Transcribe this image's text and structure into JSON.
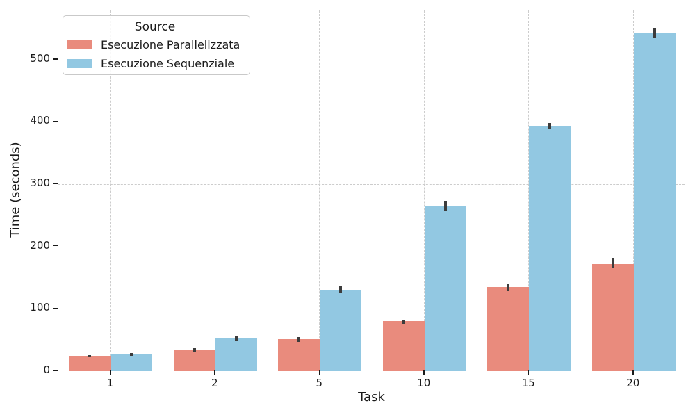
{
  "chart_data": {
    "type": "bar",
    "title": "",
    "xlabel": "Task",
    "ylabel": "Time (seconds)",
    "categories": [
      "1",
      "2",
      "5",
      "10",
      "15",
      "20"
    ],
    "series": [
      {
        "name": "Esecuzione Parallelizzata",
        "color": "#E98B7D",
        "values": [
          24,
          34,
          51,
          80,
          135,
          172
        ],
        "err_low": [
          22,
          31,
          47,
          76,
          128,
          165
        ],
        "err_high": [
          26,
          37,
          55,
          83,
          141,
          182
        ]
      },
      {
        "name": "Esecuzione Sequenziale",
        "color": "#92C8E2",
        "values": [
          27,
          52,
          130,
          265,
          394,
          543
        ],
        "err_low": [
          25,
          48,
          125,
          258,
          388,
          536
        ],
        "err_high": [
          29,
          56,
          136,
          273,
          398,
          551
        ]
      }
    ],
    "yticks": [
      0,
      100,
      200,
      300,
      400,
      500
    ],
    "ylim": [
      0,
      579
    ],
    "grid": "both-dashed",
    "legend_title": "Source",
    "legend_position": "upper-left",
    "bar_group_width": 0.8,
    "error_bar_color": "#3c3c3c",
    "grid_color": "#cccccc",
    "spine_color": "#1a1a1a",
    "text_color": "#1a1a1a"
  }
}
